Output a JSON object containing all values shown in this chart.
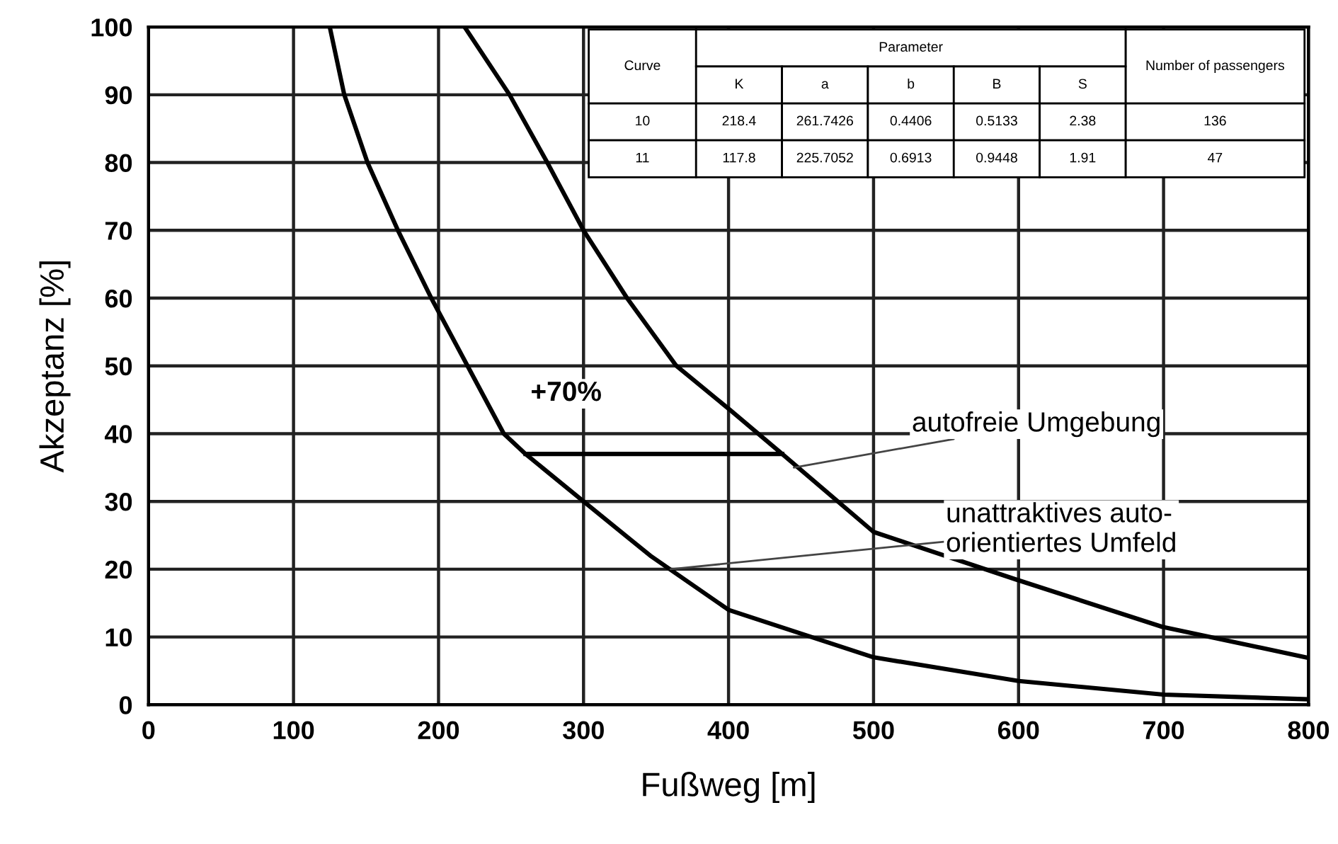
{
  "chart_data": [
    {
      "type": "line",
      "xlabel": "Fußweg [m]",
      "ylabel": "Akzeptanz [%]",
      "xlim": [
        0,
        800
      ],
      "xticks": [
        0,
        100,
        200,
        300,
        400,
        500,
        600,
        700,
        800
      ],
      "ylim": [
        0,
        100
      ],
      "yticks": [
        0,
        10,
        20,
        30,
        40,
        50,
        60,
        70,
        80,
        90,
        100
      ],
      "grid": true,
      "line_style": "solid",
      "series": [
        {
          "color": "#000000",
          "x": [
            218,
            249,
            275,
            300,
            330,
            364,
            401,
            437,
            500,
            598,
            699,
            798
          ],
          "values": [
            100,
            90,
            80,
            70,
            60,
            50,
            43.5,
            37,
            25.5,
            18.5,
            11.5,
            7
          ]
        },
        {
          "color": "#000000",
          "x": [
            125,
            135,
            151,
            172,
            195,
            220,
            245,
            260,
            300,
            346,
            400,
            500,
            600,
            700,
            800
          ],
          "values": [
            100,
            90,
            80,
            70,
            60,
            50,
            40,
            37,
            30,
            22,
            14,
            7,
            3.5,
            1.5,
            0.8
          ]
        },
        {
          "color": "#000000",
          "x": [
            260,
            437
          ],
          "values": [
            37,
            37
          ]
        }
      ],
      "annotations": [
        "+70%",
        {
          "text": "autofreie Umgebung",
          "x": 445,
          "y": 35
        },
        {
          "text": "unattraktives auto-\norientiertes Umfeld",
          "x": 360,
          "y": 20
        }
      ]
    },
    {
      "type": "other",
      "title": "Parameter",
      "categories": [
        "Curve",
        "K",
        "a",
        "b",
        "B",
        "S",
        "Number of passengers"
      ],
      "cells": [
        [
          "10",
          "218.4",
          "261.7426",
          "0.4406",
          "0.5133",
          "2.38",
          "136"
        ],
        [
          "11",
          "117.8",
          "225.7052",
          "0.6913",
          "0.9448",
          "1.91",
          "47"
        ]
      ]
    }
  ]
}
